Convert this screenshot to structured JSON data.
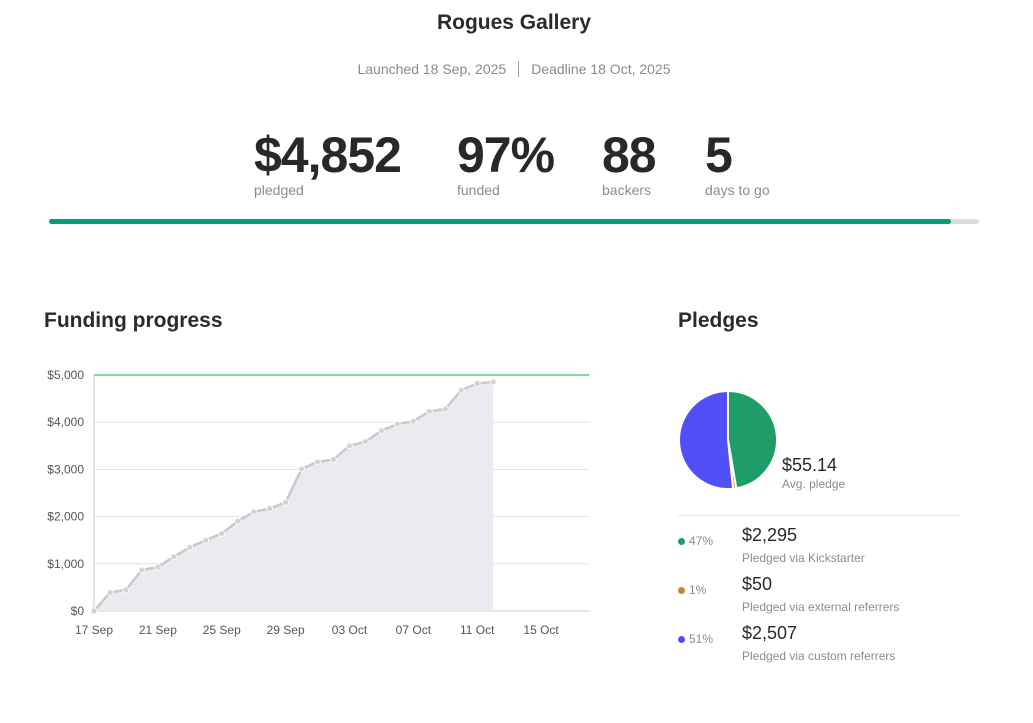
{
  "title": "Rogues Gallery",
  "launched": "Launched 18 Sep, 2025",
  "deadline": "Deadline 18 Oct, 2025",
  "stats": [
    {
      "value": "$4,852",
      "label": "pledged"
    },
    {
      "value": "97%",
      "label": "funded"
    },
    {
      "value": "88",
      "label": "backers"
    },
    {
      "value": "5",
      "label": "days to go"
    }
  ],
  "progress_fraction": 0.97,
  "colors": {
    "progress": "#009e74",
    "kickstarter": "#1f9d68",
    "external": "#c8862a",
    "custom": "#5150f7",
    "line": "#c9c8cd",
    "area": "#ebebef",
    "goal_line": "#2fc468"
  },
  "funding_title": "Funding progress",
  "pledges_title": "Pledges",
  "avg_pledge": {
    "value": "$55.14",
    "label": "Avg. pledge"
  },
  "pledge_breakdown": [
    {
      "pct": "47%",
      "amount": "$2,295",
      "label": "Pledged via Kickstarter",
      "color": "#1f9d68",
      "value": 2295
    },
    {
      "pct": "1%",
      "amount": "$50",
      "label": "Pledged via external referrers",
      "color": "#c8862a",
      "value": 50
    },
    {
      "pct": "51%",
      "amount": "$2,507",
      "label": "Pledged via custom referrers",
      "color": "#5150f7",
      "value": 2507
    }
  ],
  "chart_data": [
    {
      "type": "area",
      "title": "Funding progress",
      "x_ticks": [
        "17 Sep",
        "21 Sep",
        "25 Sep",
        "29 Sep",
        "03 Oct",
        "07 Oct",
        "11 Oct",
        "15 Oct"
      ],
      "x_tick_days": [
        0,
        4,
        8,
        12,
        16,
        20,
        24,
        28
      ],
      "y_ticks": [
        "$0",
        "$1,000",
        "$2,000",
        "$3,000",
        "$4,000",
        "$5,000"
      ],
      "ylim": [
        0,
        5000
      ],
      "xlim_days": [
        0,
        31
      ],
      "goal": 5000,
      "series": [
        {
          "x": [
            "17 Sep",
            "18 Sep",
            "19 Sep",
            "20 Sep",
            "21 Sep",
            "22 Sep",
            "23 Sep",
            "24 Sep",
            "25 Sep",
            "26 Sep",
            "27 Sep",
            "28 Sep",
            "29 Sep",
            "30 Sep",
            "01 Oct",
            "02 Oct",
            "03 Oct",
            "04 Oct",
            "05 Oct",
            "06 Oct",
            "07 Oct",
            "08 Oct",
            "09 Oct",
            "10 Oct",
            "11 Oct",
            "12 Oct"
          ],
          "values": [
            0,
            390,
            450,
            870,
            930,
            1150,
            1350,
            1500,
            1640,
            1900,
            2100,
            2170,
            2300,
            3010,
            3160,
            3210,
            3500,
            3590,
            3820,
            3960,
            4020,
            4230,
            4280,
            4680,
            4820,
            4852
          ]
        }
      ],
      "grid": true
    },
    {
      "type": "pie",
      "title": "Pledges",
      "labels": [
        "Pledged via Kickstarter",
        "Pledged via external referrers",
        "Pledged via custom referrers"
      ],
      "values": [
        2295,
        50,
        2507
      ]
    }
  ]
}
